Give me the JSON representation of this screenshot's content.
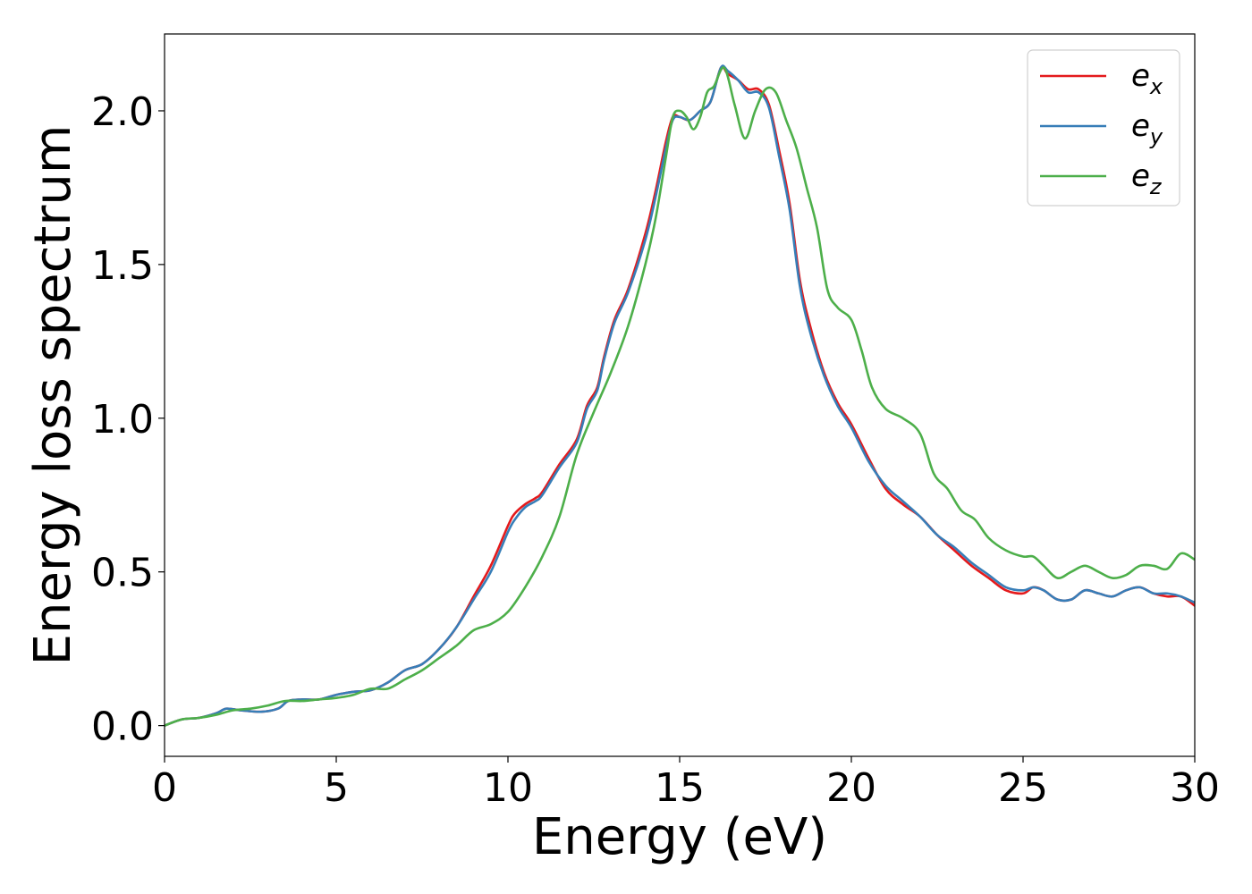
{
  "chart_data": {
    "type": "line",
    "title": "",
    "xlabel": "Energy (eV)",
    "ylabel": "Energy loss spectrum",
    "xlim": [
      0,
      30
    ],
    "ylim": [
      -0.1,
      2.25
    ],
    "xticks": [
      "0",
      "5",
      "10",
      "15",
      "20",
      "25",
      "30"
    ],
    "yticks": [
      "0.0",
      "0.5",
      "1.0",
      "1.5",
      "2.0"
    ],
    "grid": false,
    "legend_position": "top-right",
    "series": [
      {
        "name": "e_x",
        "label_base": "e",
        "label_sub": "x",
        "color": "#e41a1c",
        "x": [
          0,
          0.5,
          1,
          1.5,
          1.8,
          2.2,
          2.8,
          3.3,
          3.6,
          4,
          4.5,
          5,
          5.5,
          6,
          6.5,
          7,
          7.5,
          8,
          8.5,
          9,
          9.5,
          10,
          10.2,
          10.5,
          10.8,
          11,
          11.5,
          12,
          12.3,
          12.6,
          12.8,
          13.1,
          13.5,
          14,
          14.3,
          14.6,
          14.8,
          15,
          15.3,
          15.6,
          15.9,
          16.2,
          16.4,
          16.7,
          17,
          17.3,
          17.6,
          17.9,
          18.2,
          18.5,
          18.8,
          19.2,
          19.6,
          20,
          20.5,
          21,
          21.5,
          22,
          22.5,
          23,
          23.5,
          24,
          24.5,
          25,
          25.3,
          25.6,
          26,
          26.4,
          26.8,
          27.2,
          27.6,
          28,
          28.4,
          28.8,
          29.2,
          29.6,
          30
        ],
        "y": [
          0.0,
          0.02,
          0.025,
          0.04,
          0.055,
          0.05,
          0.045,
          0.055,
          0.08,
          0.085,
          0.085,
          0.1,
          0.11,
          0.115,
          0.14,
          0.18,
          0.2,
          0.25,
          0.32,
          0.42,
          0.52,
          0.65,
          0.69,
          0.72,
          0.74,
          0.76,
          0.85,
          0.93,
          1.04,
          1.1,
          1.2,
          1.32,
          1.42,
          1.6,
          1.74,
          1.9,
          1.98,
          1.98,
          1.97,
          2.0,
          2.03,
          2.14,
          2.12,
          2.1,
          2.07,
          2.07,
          2.02,
          1.87,
          1.7,
          1.45,
          1.3,
          1.15,
          1.05,
          0.98,
          0.87,
          0.77,
          0.72,
          0.68,
          0.62,
          0.57,
          0.52,
          0.48,
          0.44,
          0.43,
          0.45,
          0.44,
          0.41,
          0.41,
          0.44,
          0.43,
          0.42,
          0.44,
          0.45,
          0.43,
          0.42,
          0.42,
          0.39
        ]
      },
      {
        "name": "e_y",
        "label_base": "e",
        "label_sub": "y",
        "color": "#377eb8",
        "x": [
          0,
          0.5,
          1,
          1.5,
          1.8,
          2.2,
          2.8,
          3.3,
          3.6,
          4,
          4.5,
          5,
          5.5,
          6,
          6.5,
          7,
          7.5,
          8,
          8.5,
          9,
          9.5,
          10,
          10.2,
          10.5,
          10.8,
          11,
          11.5,
          12,
          12.3,
          12.6,
          12.8,
          13.1,
          13.5,
          14,
          14.3,
          14.6,
          14.8,
          15,
          15.3,
          15.6,
          15.9,
          16.2,
          16.4,
          16.7,
          17,
          17.3,
          17.6,
          17.9,
          18.2,
          18.5,
          18.8,
          19.2,
          19.6,
          20,
          20.5,
          21,
          21.5,
          22,
          22.5,
          23,
          23.5,
          24,
          24.5,
          25,
          25.3,
          25.6,
          26,
          26.4,
          26.8,
          27.2,
          27.6,
          28,
          28.4,
          28.8,
          29.2,
          29.6,
          30
        ],
        "y": [
          0.0,
          0.02,
          0.025,
          0.04,
          0.055,
          0.05,
          0.045,
          0.055,
          0.08,
          0.085,
          0.085,
          0.1,
          0.11,
          0.115,
          0.14,
          0.18,
          0.2,
          0.25,
          0.32,
          0.41,
          0.5,
          0.63,
          0.67,
          0.71,
          0.73,
          0.75,
          0.84,
          0.92,
          1.03,
          1.09,
          1.19,
          1.31,
          1.41,
          1.58,
          1.72,
          1.88,
          1.97,
          1.98,
          1.97,
          2.0,
          2.03,
          2.14,
          2.13,
          2.1,
          2.06,
          2.06,
          2.01,
          1.85,
          1.68,
          1.43,
          1.28,
          1.14,
          1.04,
          0.97,
          0.86,
          0.78,
          0.73,
          0.68,
          0.62,
          0.58,
          0.53,
          0.49,
          0.45,
          0.44,
          0.45,
          0.44,
          0.41,
          0.41,
          0.44,
          0.43,
          0.42,
          0.44,
          0.45,
          0.43,
          0.43,
          0.42,
          0.4
        ]
      },
      {
        "name": "e_z",
        "label_base": "e",
        "label_sub": "z",
        "color": "#4daf4a",
        "x": [
          0,
          0.5,
          1,
          1.5,
          2,
          2.5,
          3,
          3.5,
          4,
          4.5,
          5,
          5.5,
          6,
          6.5,
          7,
          7.5,
          8,
          8.5,
          9,
          9.5,
          10,
          10.5,
          11,
          11.5,
          12,
          12.5,
          13,
          13.5,
          14,
          14.3,
          14.6,
          14.8,
          15,
          15.2,
          15.4,
          15.6,
          15.8,
          16,
          16.3,
          16.6,
          16.9,
          17.2,
          17.5,
          17.8,
          18.1,
          18.4,
          18.7,
          19,
          19.3,
          19.6,
          20,
          20.3,
          20.6,
          21,
          21.5,
          22,
          22.4,
          22.8,
          23.2,
          23.6,
          24,
          24.5,
          25,
          25.3,
          25.6,
          26,
          26.4,
          26.8,
          27.2,
          27.6,
          28,
          28.4,
          28.8,
          29.2,
          29.6,
          30
        ],
        "y": [
          0.0,
          0.02,
          0.025,
          0.035,
          0.05,
          0.055,
          0.065,
          0.08,
          0.08,
          0.085,
          0.09,
          0.1,
          0.12,
          0.12,
          0.15,
          0.18,
          0.22,
          0.26,
          0.31,
          0.33,
          0.37,
          0.45,
          0.55,
          0.68,
          0.88,
          1.02,
          1.15,
          1.3,
          1.5,
          1.65,
          1.85,
          1.98,
          2.0,
          1.98,
          1.94,
          1.98,
          2.06,
          2.08,
          2.14,
          2.02,
          1.91,
          2.0,
          2.07,
          2.06,
          1.97,
          1.88,
          1.75,
          1.62,
          1.42,
          1.36,
          1.32,
          1.22,
          1.1,
          1.03,
          1.0,
          0.95,
          0.82,
          0.77,
          0.7,
          0.67,
          0.61,
          0.57,
          0.55,
          0.55,
          0.52,
          0.48,
          0.5,
          0.52,
          0.5,
          0.48,
          0.49,
          0.52,
          0.52,
          0.51,
          0.56,
          0.54
        ]
      }
    ]
  }
}
